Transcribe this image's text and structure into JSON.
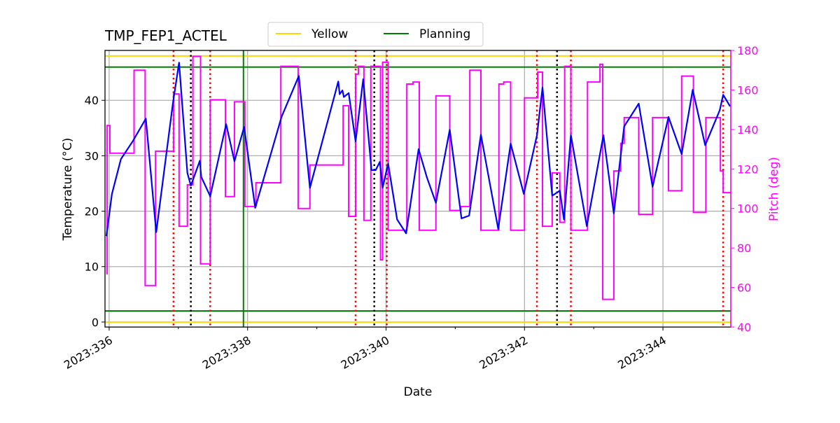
{
  "chart_data": {
    "type": "line",
    "title": "TMP_FEP1_ACTEL",
    "xlabel": "Date",
    "ylabel": "Temperature (°C)",
    "ylabel_right": "Pitch (deg)",
    "xlim": [
      335.94,
      344.98
    ],
    "ylim": [
      -0.9,
      49.0
    ],
    "ylim_right": [
      40,
      180
    ],
    "grid": true,
    "legend_position": "top-center",
    "x_ticks": [
      336,
      338,
      340,
      342,
      344
    ],
    "x_tick_labels": [
      "2023:336",
      "2023:338",
      "2023:340",
      "2023:342",
      "2023:344"
    ],
    "x_minor_ticks": [
      337,
      339,
      341,
      343
    ],
    "y_ticks": [
      0,
      10,
      20,
      30,
      40
    ],
    "y_tick_labels": [
      "0",
      "10",
      "20",
      "30",
      "40"
    ],
    "y_right_ticks": [
      40,
      60,
      80,
      100,
      120,
      140,
      160,
      180
    ],
    "y_right_tick_labels": [
      "40",
      "60",
      "80",
      "100",
      "120",
      "140",
      "160",
      "180"
    ],
    "colors": {
      "temperature": "#0000ff",
      "pitch": "#ff00ff",
      "yellow": "#ffd700",
      "planning": "#008000",
      "red_marker": "#ff0000",
      "black_marker": "#000000",
      "grid": "#b0b0b0"
    },
    "limit_lines": [
      {
        "name": "Yellow",
        "values": [
          0,
          48
        ],
        "color": "#ffd700"
      },
      {
        "name": "Planning",
        "values": [
          2,
          46
        ],
        "color": "#008000"
      }
    ],
    "vertical_markers": {
      "red_dotted": [
        336.93,
        337.46,
        339.56,
        340.01,
        342.18,
        342.67,
        344.87
      ],
      "black_dotted": [
        337.18,
        339.83,
        342.47
      ],
      "green_solid": [
        337.94
      ]
    },
    "temperature": {
      "x": [
        335.96,
        336.04,
        336.17,
        336.34,
        336.53,
        336.68,
        336.92,
        337.01,
        337.13,
        337.18,
        337.31,
        337.33,
        337.46,
        337.69,
        337.81,
        337.95,
        338.11,
        338.49,
        338.74,
        338.9,
        339.31,
        339.33,
        339.37,
        339.39,
        339.46,
        339.56,
        339.67,
        339.79,
        339.85,
        339.91,
        339.95,
        340.03,
        340.16,
        340.29,
        340.47,
        340.59,
        340.72,
        340.92,
        341.09,
        341.2,
        341.37,
        341.62,
        341.8,
        341.99,
        342.18,
        342.26,
        342.4,
        342.51,
        342.57,
        342.67,
        342.9,
        343.14,
        343.29,
        343.44,
        343.65,
        343.85,
        344.08,
        344.27,
        344.43,
        344.61,
        344.82,
        344.87,
        344.97
      ],
      "y": [
        15.5,
        23.1,
        29.4,
        32.6,
        36.7,
        16.2,
        39.4,
        46.8,
        26.9,
        24.6,
        29.1,
        26.2,
        22.7,
        35.7,
        29.0,
        35.2,
        20.6,
        37.0,
        44.4,
        24.2,
        43.4,
        41.1,
        41.8,
        40.6,
        41.3,
        32.6,
        43.8,
        27.4,
        27.4,
        28.9,
        24.2,
        28.6,
        18.5,
        16.0,
        31.2,
        26.1,
        21.5,
        34.7,
        18.7,
        19.2,
        33.8,
        16.8,
        32.2,
        23.1,
        33.7,
        42.3,
        22.8,
        23.7,
        18.5,
        33.7,
        17.3,
        33.7,
        19.6,
        35.3,
        39.4,
        24.4,
        37.0,
        30.3,
        41.9,
        31.9,
        38.2,
        41.0,
        38.9
      ]
    },
    "pitch": {
      "x": [
        335.96,
        335.97,
        336.01,
        336.36,
        336.52,
        336.67,
        336.93,
        337.01,
        337.13,
        337.21,
        337.32,
        337.46,
        337.68,
        337.81,
        337.96,
        338.12,
        338.48,
        338.73,
        338.9,
        339.38,
        339.46,
        339.56,
        339.6,
        339.68,
        339.78,
        339.92,
        339.95,
        340.03,
        340.3,
        340.39,
        340.48,
        340.72,
        340.92,
        341.08,
        341.21,
        341.37,
        341.63,
        341.7,
        341.8,
        342.0,
        342.19,
        342.26,
        342.4,
        342.51,
        342.58,
        342.67,
        342.91,
        343.09,
        343.13,
        343.29,
        343.39,
        343.44,
        343.65,
        343.85,
        344.08,
        344.27,
        344.44,
        344.62,
        344.83,
        344.87,
        344.98
      ],
      "y": [
        67,
        142,
        128,
        170,
        61,
        129,
        158,
        91,
        112,
        177,
        72,
        155,
        106,
        154,
        101,
        113,
        172,
        100,
        122,
        152,
        96,
        168,
        172,
        94,
        172,
        74,
        174,
        89,
        163,
        164,
        89,
        157,
        99,
        101,
        170,
        89,
        163,
        164,
        89,
        156,
        169,
        91,
        118,
        93,
        172,
        89,
        164,
        173,
        54,
        119,
        133,
        146,
        97,
        146,
        109,
        167,
        98,
        146,
        119,
        108,
        108
      ]
    }
  }
}
